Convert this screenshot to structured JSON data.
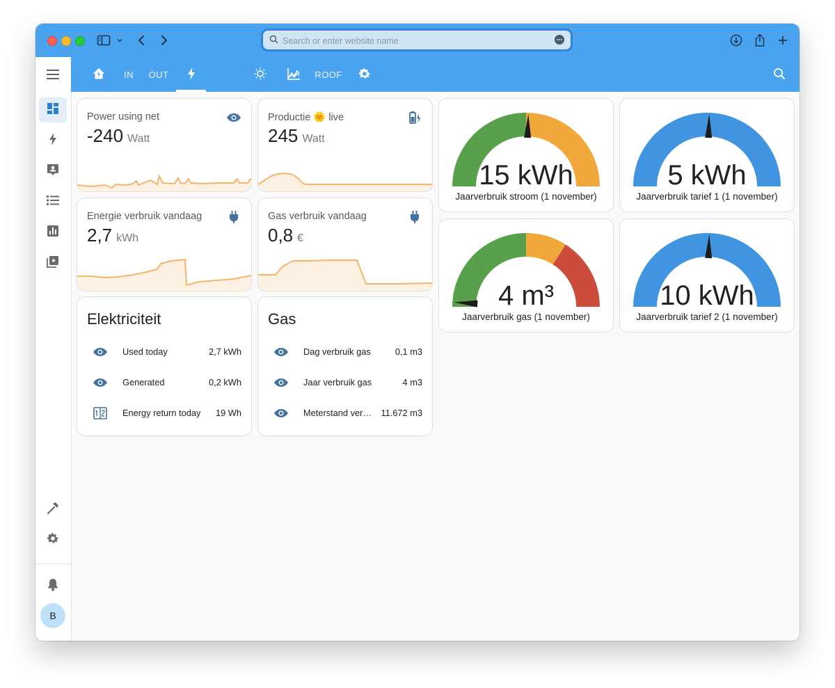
{
  "browser": {
    "search_placeholder": "Search or enter website name"
  },
  "nav": {
    "tabs": [
      "IN",
      "OUT",
      "ROOF"
    ]
  },
  "sidebar": {
    "avatar_initial": "B"
  },
  "cards": {
    "power": {
      "title": "Power using net",
      "value": "-240",
      "unit": "Watt"
    },
    "productie": {
      "title": "Productie 🌞 live",
      "value": "245",
      "unit": "Watt"
    },
    "energie": {
      "title": "Energie verbruik vandaag",
      "value": "2,7",
      "unit": "kWh"
    },
    "gas": {
      "title": "Gas verbruik vandaag",
      "value": "0,8",
      "unit": "€"
    }
  },
  "entities": {
    "elektriciteit": {
      "title": "Elektriciteit",
      "rows": [
        {
          "name": "Used today",
          "value": "2,7 kWh"
        },
        {
          "name": "Generated",
          "value": "0,2 kWh"
        },
        {
          "name": "Energy return today",
          "value": "19 Wh"
        }
      ]
    },
    "gas": {
      "title": "Gas",
      "rows": [
        {
          "name": "Dag verbruik gas",
          "value": "0,1 m3"
        },
        {
          "name": "Jaar verbruik gas",
          "value": "4 m3"
        },
        {
          "name": "Meterstand verbruik gas",
          "value": "11.672 m3"
        }
      ]
    }
  },
  "gauges": [
    {
      "value": "15 kWh",
      "label": "Jaarverbruik stroom (1 november)",
      "fraction": 0.51,
      "colors": [
        "#58a04b",
        "#f0a83a"
      ]
    },
    {
      "value": "5 kWh",
      "label": "Jaarverbruik tarief 1 (1 november)",
      "fraction": 0.51,
      "colors": [
        "#4195e0"
      ]
    },
    {
      "value": "4 m³",
      "label": "Jaarverbruik gas (1 november)",
      "fraction": 0.02,
      "colors": [
        "#58a04b",
        "#f0a83a",
        "#cc4c3c"
      ]
    },
    {
      "value": "10 kWh",
      "label": "Jaarverbruik tarief 2 (1 november)",
      "fraction": 0.51,
      "colors": [
        "#4195e0"
      ]
    }
  ],
  "colors": {
    "accent": "#4aa3ee",
    "sparkline": "#f3b56a",
    "icon": "#44739e"
  }
}
